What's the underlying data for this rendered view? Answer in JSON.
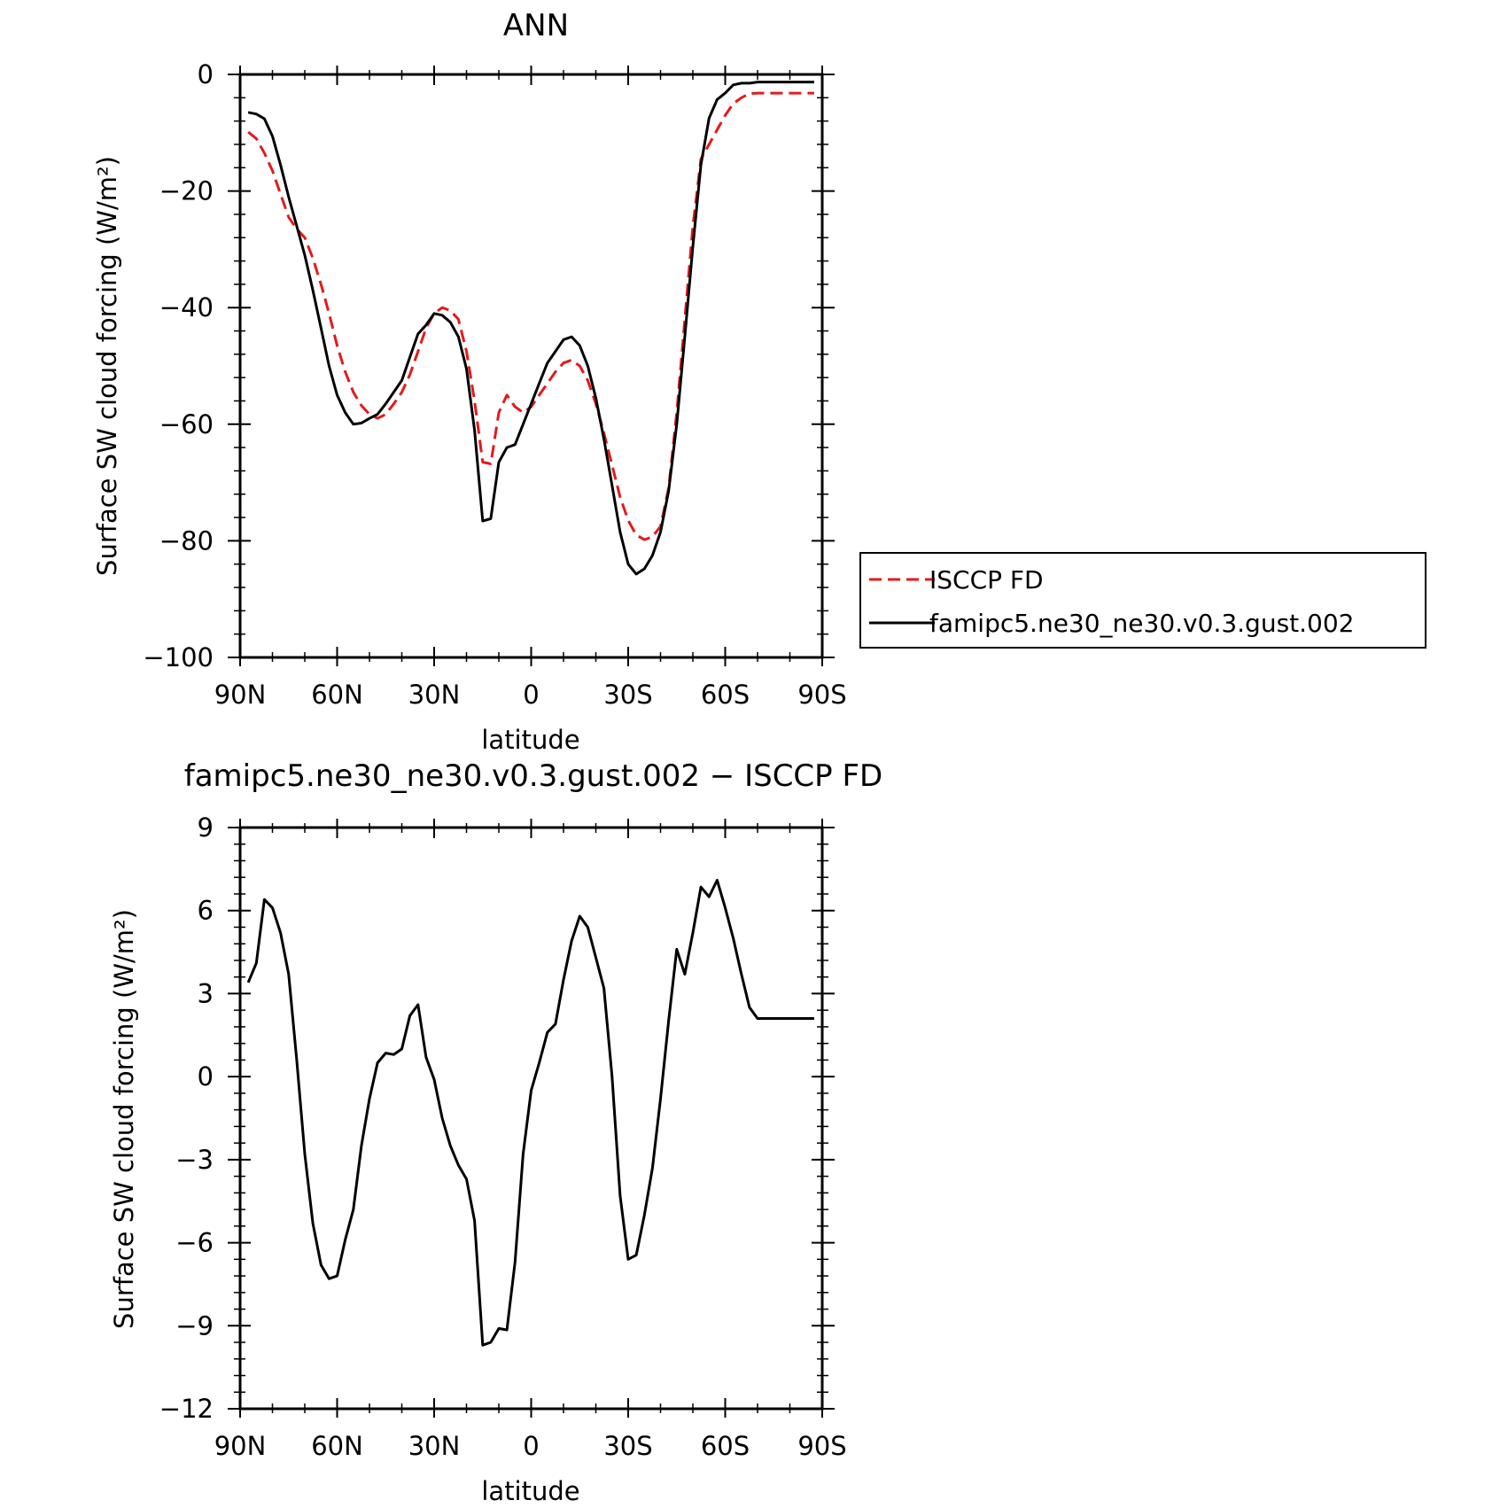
{
  "chart_data": [
    {
      "type": "line",
      "title": "ANN",
      "xlabel": "latitude",
      "ylabel": "Surface SW cloud forcing",
      "ylabel_units": "(W/m²)",
      "xlim": [
        -90,
        90
      ],
      "ylim": [
        -100,
        0
      ],
      "x_tick_values": [
        -90,
        -60,
        -30,
        0,
        30,
        60,
        90
      ],
      "x_tick_labels": [
        "90N",
        "60N",
        "30N",
        "0",
        "30S",
        "60S",
        "90S"
      ],
      "y_tick_values": [
        0,
        -20,
        -40,
        -60,
        -80,
        -100
      ],
      "y_tick_labels": [
        "0",
        "−20",
        "−40",
        "−60",
        "−80",
        "−100"
      ],
      "legend_position": "right",
      "series": [
        {
          "name": "ISCCP FD",
          "color": "#e41a1c",
          "dash": "dashed",
          "x": [
            -87.5,
            -85,
            -82.5,
            -80,
            -77.5,
            -75,
            -72.5,
            -70,
            -67.5,
            -65,
            -62.5,
            -60,
            -57.5,
            -55,
            -52.5,
            -50,
            -47.5,
            -45,
            -42.5,
            -40,
            -37.5,
            -35,
            -32.5,
            -30,
            -27.5,
            -25,
            -22.5,
            -20,
            -17.5,
            -15,
            -12.5,
            -10,
            -7.5,
            -5,
            -2.5,
            0,
            2.5,
            5,
            7.5,
            10,
            12.5,
            15,
            17.5,
            20,
            22.5,
            25,
            27.5,
            30,
            32.5,
            35,
            37.5,
            40,
            42.5,
            45,
            47.5,
            50,
            52.5,
            55,
            57.5,
            60,
            62.5,
            65,
            67.5,
            70,
            72.5,
            75,
            77.5,
            80,
            82.5,
            85,
            87.5
          ],
          "y": [
            -9.9,
            -11,
            -13.5,
            -16.5,
            -20.5,
            -24.5,
            -26.5,
            -28,
            -31.5,
            -36,
            -41,
            -46.5,
            -51,
            -54.5,
            -56.8,
            -58.3,
            -59,
            -58.3,
            -56.5,
            -54.5,
            -51.5,
            -47.5,
            -43.5,
            -41,
            -40,
            -40.5,
            -42,
            -47.5,
            -56,
            -66.5,
            -66.8,
            -58,
            -55,
            -57,
            -58,
            -57,
            -55,
            -53,
            -51,
            -49.5,
            -49,
            -50,
            -52.5,
            -56.5,
            -61.5,
            -67,
            -72.5,
            -76.5,
            -79,
            -79.8,
            -79.3,
            -77.5,
            -71,
            -58,
            -42,
            -26,
            -14.5,
            -12,
            -9.5,
            -7,
            -5,
            -4,
            -3.3,
            -3.2,
            -3.2,
            -3.2,
            -3.2,
            -3.2,
            -3.2,
            -3.2,
            -3.2
          ]
        },
        {
          "name": "famipc5.ne30_ne30.v0.3.gust.002",
          "color": "#000000",
          "dash": "solid",
          "x": [
            -87.5,
            -85,
            -82.5,
            -80,
            -77.5,
            -75,
            -72.5,
            -70,
            -67.5,
            -65,
            -62.5,
            -60,
            -57.5,
            -55,
            -52.5,
            -50,
            -47.5,
            -45,
            -42.5,
            -40,
            -37.5,
            -35,
            -32.5,
            -30,
            -27.5,
            -25,
            -22.5,
            -20,
            -17.5,
            -15,
            -12.5,
            -10,
            -7.5,
            -5,
            -2.5,
            0,
            2.5,
            5,
            7.5,
            10,
            12.5,
            15,
            17.5,
            20,
            22.5,
            25,
            27.5,
            30,
            32.5,
            35,
            37.5,
            40,
            42.5,
            45,
            47.5,
            50,
            52.5,
            55,
            57.5,
            60,
            62.5,
            65,
            67.5,
            70,
            72.5,
            75,
            77.5,
            80,
            82.5,
            85,
            87.5
          ],
          "y": [
            -6.5,
            -6.8,
            -7.6,
            -10.6,
            -15.5,
            -21,
            -26,
            -31,
            -37,
            -43.5,
            -50,
            -55,
            -58,
            -60,
            -59.8,
            -59,
            -58.3,
            -56.5,
            -54.5,
            -52.5,
            -48.5,
            -44.5,
            -43,
            -41,
            -41.3,
            -42.5,
            -45,
            -50.5,
            -61,
            -76.6,
            -76.2,
            -66.5,
            -64,
            -63.5,
            -60,
            -56.5,
            -53,
            -49.5,
            -47.5,
            -45.5,
            -45,
            -46.5,
            -50,
            -55.5,
            -62.5,
            -70.5,
            -78.5,
            -84,
            -85.7,
            -84.8,
            -82.5,
            -78.5,
            -71.5,
            -60,
            -45,
            -29.5,
            -15.5,
            -7.5,
            -4.3,
            -3.2,
            -1.8,
            -1.5,
            -1.5,
            -1.3,
            -1.3,
            -1.3,
            -1.3,
            -1.3,
            -1.3,
            -1.3,
            -1.3
          ]
        }
      ]
    },
    {
      "type": "line",
      "title": "famipc5.ne30_ne30.v0.3.gust.002 − ISCCP FD",
      "xlabel": "latitude",
      "ylabel": "Surface SW cloud forcing",
      "ylabel_units": "(W/m²)",
      "xlim": [
        -90,
        90
      ],
      "ylim": [
        -12,
        9
      ],
      "x_tick_values": [
        -90,
        -60,
        -30,
        0,
        30,
        60,
        90
      ],
      "x_tick_labels": [
        "90N",
        "60N",
        "30N",
        "0",
        "30S",
        "60S",
        "90S"
      ],
      "y_tick_values": [
        9,
        6,
        3,
        0,
        -3,
        -6,
        -9,
        -12
      ],
      "y_tick_labels": [
        "9",
        "6",
        "3",
        "0",
        "−3",
        "−6",
        "−9",
        "−12"
      ],
      "series": [
        {
          "color": "#000000",
          "dash": "solid",
          "x": [
            -87.5,
            -85,
            -82.5,
            -80,
            -77.5,
            -75,
            -72.5,
            -70,
            -67.5,
            -65,
            -62.5,
            -60,
            -57.5,
            -55,
            -52.5,
            -50,
            -47.5,
            -45,
            -42.5,
            -40,
            -37.5,
            -35,
            -32.5,
            -30,
            -27.5,
            -25,
            -22.5,
            -20,
            -17.5,
            -15,
            -12.5,
            -10,
            -7.5,
            -5,
            -2.5,
            0,
            2.5,
            5,
            7.5,
            10,
            12.5,
            15,
            17.5,
            20,
            22.5,
            25,
            27.5,
            30,
            32.5,
            35,
            37.5,
            40,
            42.5,
            45,
            47.5,
            50,
            52.5,
            55,
            57.5,
            60,
            62.5,
            65,
            67.5,
            70,
            72.5,
            75,
            77.5,
            80,
            82.5,
            85,
            87.5
          ],
          "y": [
            3.4,
            4.1,
            6.4,
            6.1,
            5.2,
            3.7,
            0.6,
            -2.8,
            -5.3,
            -6.8,
            -7.3,
            -7.2,
            -5.9,
            -4.8,
            -2.5,
            -0.8,
            0.5,
            0.85,
            0.8,
            1,
            2.2,
            2.6,
            0.7,
            -0.1,
            -1.5,
            -2.5,
            -3.2,
            -3.7,
            -5.2,
            -9.7,
            -9.6,
            -9.1,
            -9.15,
            -6.7,
            -2.8,
            -0.5,
            0.5,
            1.6,
            1.9,
            3.5,
            4.9,
            5.8,
            5.4,
            4.3,
            3.2,
            0,
            -4.3,
            -6.6,
            -6.45,
            -5,
            -3.3,
            -0.8,
            2,
            4.6,
            3.7,
            5.2,
            6.85,
            6.5,
            7.1,
            6.1,
            5,
            3.7,
            2.5,
            2.1,
            2.1,
            2.1,
            2.1,
            2.1,
            2.1,
            2.1,
            2.1
          ]
        }
      ]
    }
  ]
}
